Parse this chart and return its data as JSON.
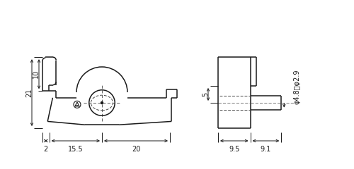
{
  "bg_color": "#ffffff",
  "line_color": "#1a1a1a",
  "dash_color": "#444444",
  "font_size": 7.0,
  "dims": {
    "h21": "21",
    "h10": "10",
    "w2": "2",
    "w15p5": "15.5",
    "w20": "20",
    "d5": "5",
    "d9p5": "9.5",
    "d9p1": "9.1",
    "phi": "φ4.8・φ2.9"
  }
}
